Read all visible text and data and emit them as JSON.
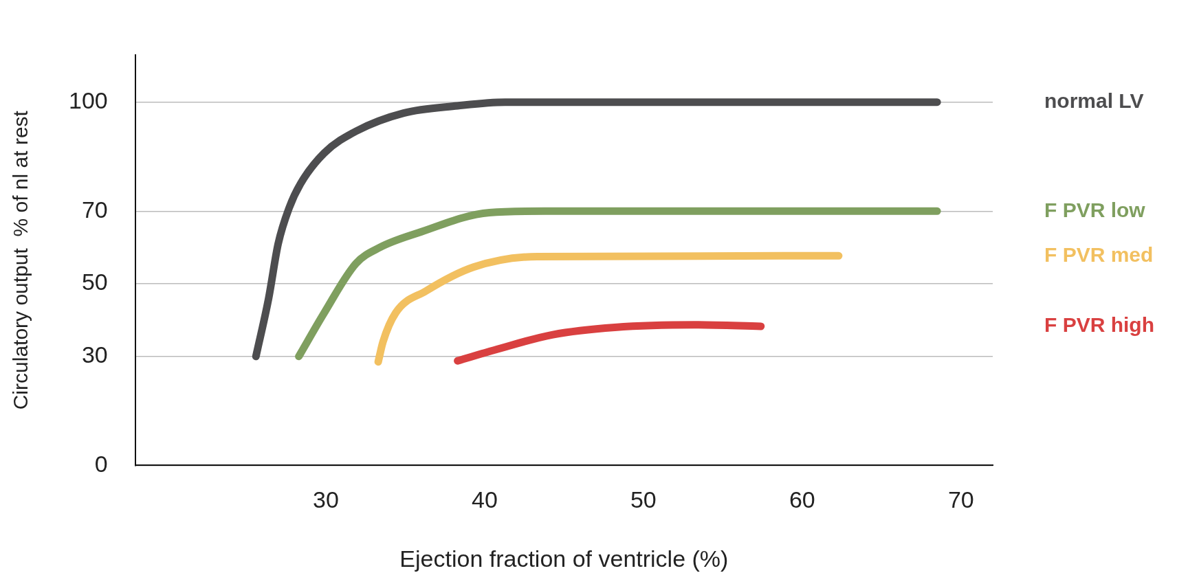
{
  "chart_data": {
    "type": "line",
    "xlabel": "Ejection fraction of ventricle (%)",
    "ylabel": "Circulatory output  % of nl at rest",
    "xlim": [
      18,
      72
    ],
    "xticks": [
      30,
      40,
      50,
      60,
      70
    ],
    "ylim": [
      0,
      113
    ],
    "yticks": [
      0,
      30,
      50,
      70,
      100
    ],
    "grid": "y",
    "legend": false,
    "marker": "none",
    "line_style": "solid",
    "series": [
      {
        "name": "normal LV",
        "color": "#4d4d4f",
        "x": [
          25.6,
          26.4,
          27,
          27.7,
          28.4,
          29.9,
          31.9,
          34.9,
          38.3,
          41.3,
          68.5
        ],
        "values": [
          30,
          46,
          61,
          71,
          77.5,
          86,
          92,
          97,
          99,
          100,
          100
        ]
      },
      {
        "name": "F PVR low",
        "color": "#7f9f5f",
        "x": [
          28.3,
          29.9,
          31.9,
          33.4,
          35.8,
          40.3,
          43.8,
          68.5
        ],
        "values": [
          30,
          42,
          55.6,
          60,
          64,
          69.6,
          70,
          70
        ]
      },
      {
        "name": "F PVR med",
        "color": "#f2c060",
        "x": [
          33.3,
          33.6,
          34.4,
          36.3,
          39.3,
          43.3,
          62.3
        ],
        "values": [
          28.5,
          34,
          42,
          48,
          54.6,
          57.5,
          57.7
        ]
      },
      {
        "name": "F PVR high",
        "color": "#d94040",
        "x": [
          38.3,
          40.8,
          44.3,
          48.2,
          53.2,
          57.4
        ],
        "values": [
          28.8,
          32,
          36,
          38,
          38.7,
          38.3
        ]
      }
    ]
  }
}
